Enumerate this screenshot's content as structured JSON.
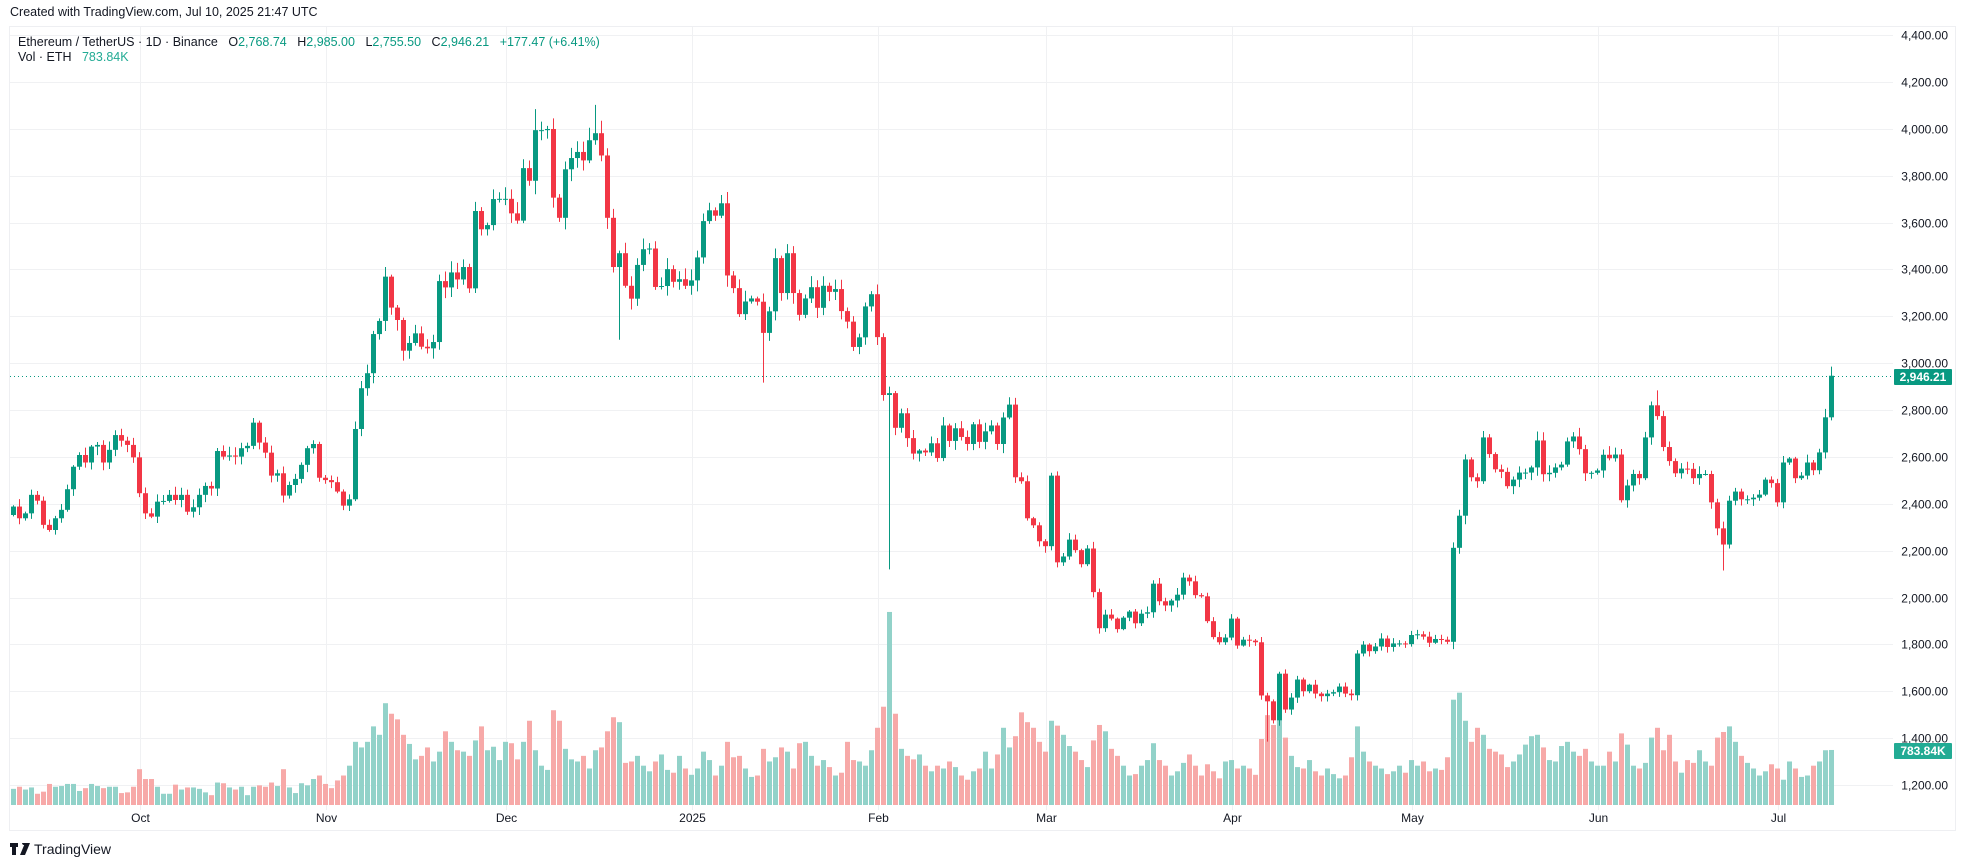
{
  "header": {
    "created": "Created with TradingView.com, Jul 10, 2025 21:47 UTC"
  },
  "legend": {
    "symbol": "Ethereum / TetherUS · 1D · Binance",
    "o_label": "O",
    "o_value": "2,768.74",
    "h_label": "H",
    "h_value": "2,985.00",
    "l_label": "L",
    "l_value": "2,755.50",
    "c_label": "C",
    "c_value": "2,946.21",
    "change": "+177.47 (+6.41%)",
    "vol_label": "Vol · ETH",
    "vol_value": "783.84K"
  },
  "price_tag": "2,946.21",
  "volume_tag": "783.84K",
  "footer": {
    "logo_text": "TradingView"
  },
  "colors": {
    "up": "#089981",
    "down": "#F23645",
    "vol_up": "#92d2c9",
    "vol_down": "#f7a9a8",
    "grid": "#f0f1f3"
  },
  "chart_data": {
    "type": "candlestick",
    "title": "Ethereum / TetherUS · 1D · Binance",
    "start_date": "2024-09-10",
    "ylim": [
      1100,
      4450
    ],
    "y_ticks": [
      {
        "value": 4400,
        "label": "4,400.00"
      },
      {
        "value": 4200,
        "label": "4,200.00"
      },
      {
        "value": 4000,
        "label": "4,000.00"
      },
      {
        "value": 3800,
        "label": "3,800.00"
      },
      {
        "value": 3600,
        "label": "3,600.00"
      },
      {
        "value": 3400,
        "label": "3,400.00"
      },
      {
        "value": 3200,
        "label": "3,200.00"
      },
      {
        "value": 3000,
        "label": "3,000.00"
      },
      {
        "value": 2800,
        "label": "2,800.00"
      },
      {
        "value": 2600,
        "label": "2,600.00"
      },
      {
        "value": 2400,
        "label": "2,400.00"
      },
      {
        "value": 2200,
        "label": "2,200.00"
      },
      {
        "value": 2000,
        "label": "2,000.00"
      },
      {
        "value": 1800,
        "label": "1,800.00"
      },
      {
        "value": 1600,
        "label": "1,600.00"
      },
      {
        "value": 1400,
        "label": "1,400.00"
      },
      {
        "value": 1200,
        "label": "1,200.00"
      }
    ],
    "x_ticks": [
      {
        "label": "Oct",
        "index": 21
      },
      {
        "label": "Nov",
        "index": 52
      },
      {
        "label": "Dec",
        "index": 82
      },
      {
        "label": "2025",
        "index": 113
      },
      {
        "label": "Feb",
        "index": 144
      },
      {
        "label": "Mar",
        "index": 172
      },
      {
        "label": "Apr",
        "index": 203
      },
      {
        "label": "May",
        "index": 233
      },
      {
        "label": "Jun",
        "index": 264
      },
      {
        "label": "Jul",
        "index": 294
      }
    ],
    "first_open": 2352,
    "close": [
      2388,
      2338,
      2359,
      2438,
      2413,
      2310,
      2288,
      2338,
      2374,
      2462,
      2558,
      2608,
      2576,
      2644,
      2651,
      2576,
      2630,
      2693,
      2669,
      2651,
      2598,
      2445,
      2359,
      2345,
      2409,
      2412,
      2438,
      2416,
      2438,
      2366,
      2385,
      2438,
      2476,
      2465,
      2625,
      2601,
      2606,
      2601,
      2637,
      2647,
      2746,
      2661,
      2618,
      2520,
      2530,
      2435,
      2480,
      2506,
      2566,
      2637,
      2655,
      2511,
      2501,
      2492,
      2452,
      2392,
      2419,
      2719,
      2893,
      2957,
      3124,
      3180,
      3369,
      3237,
      3184,
      3053,
      3086,
      3127,
      3070,
      3063,
      3090,
      3350,
      3323,
      3387,
      3357,
      3410,
      3319,
      3649,
      3571,
      3589,
      3700,
      3701,
      3701,
      3639,
      3608,
      3832,
      3778,
      3994,
      3994,
      3999,
      3706,
      3620,
      3827,
      3875,
      3901,
      3865,
      3951,
      3981,
      3886,
      3620,
      3410,
      3469,
      3330,
      3275,
      3419,
      3486,
      3489,
      3325,
      3329,
      3401,
      3347,
      3358,
      3330,
      3353,
      3451,
      3606,
      3652,
      3629,
      3682,
      3374,
      3320,
      3209,
      3263,
      3276,
      3262,
      3129,
      3221,
      3448,
      3299,
      3469,
      3299,
      3206,
      3276,
      3324,
      3236,
      3330,
      3304,
      3316,
      3222,
      3177,
      3069,
      3110,
      3242,
      3294,
      3111,
      2864,
      2872,
      2724,
      2786,
      2680,
      2614,
      2627,
      2619,
      2658,
      2595,
      2734,
      2668,
      2722,
      2685,
      2655,
      2739,
      2664,
      2709,
      2734,
      2655,
      2768,
      2823,
      2513,
      2496,
      2338,
      2308,
      2240,
      2219,
      2520,
      2150,
      2175,
      2247,
      2202,
      2142,
      2209,
      2023,
      1869,
      1927,
      1910,
      1865,
      1914,
      1940,
      1890,
      1931,
      1937,
      2059,
      1984,
      1966,
      1987,
      2012,
      2085,
      2069,
      2010,
      2005,
      1899,
      1831,
      1809,
      1829,
      1910,
      1795,
      1820,
      1816,
      1809,
      1582,
      1557,
      1476,
      1675,
      1522,
      1573,
      1650,
      1600,
      1628,
      1590,
      1579,
      1590,
      1596,
      1620,
      1590,
      1583,
      1761,
      1799,
      1771,
      1791,
      1825,
      1789,
      1804,
      1804,
      1801,
      1840,
      1843,
      1833,
      1807,
      1823,
      1820,
      1811,
      2212,
      2349,
      2589,
      2513,
      2496,
      2683,
      2612,
      2547,
      2536,
      2475,
      2503,
      2533,
      2533,
      2555,
      2670,
      2526,
      2532,
      2555,
      2567,
      2666,
      2687,
      2633,
      2530,
      2532,
      2542,
      2609,
      2594,
      2610,
      2415,
      2478,
      2527,
      2509,
      2683,
      2820,
      2774,
      2642,
      2582,
      2530,
      2550,
      2549,
      2509,
      2527,
      2527,
      2406,
      2295,
      2226,
      2413,
      2452,
      2419,
      2419,
      2426,
      2439,
      2503,
      2488,
      2406,
      2576,
      2593,
      2509,
      2520,
      2576,
      2543,
      2619,
      2768.74,
      2946.21
    ],
    "extremes": [
      {
        "index": 87,
        "high": 4084
      },
      {
        "index": 97,
        "high": 4102
      },
      {
        "index": 101,
        "low": 3100
      },
      {
        "index": 125,
        "low": 2917
      },
      {
        "index": 146,
        "high": 2900,
        "low": 2120
      },
      {
        "index": 209,
        "low": 1385
      },
      {
        "index": 274,
        "high": 2884
      },
      {
        "index": 285,
        "low": 2115
      },
      {
        "index": 303,
        "high": 2985.0,
        "low": 2755.5
      }
    ],
    "volume_unit": "K ETH",
    "volume": [
      230,
      260,
      220,
      250,
      160,
      190,
      300,
      260,
      270,
      300,
      300,
      200,
      240,
      300,
      270,
      240,
      260,
      260,
      170,
      180,
      260,
      510,
      370,
      370,
      260,
      160,
      160,
      290,
      220,
      250,
      250,
      230,
      180,
      140,
      320,
      310,
      250,
      220,
      260,
      140,
      260,
      280,
      260,
      320,
      270,
      510,
      250,
      170,
      310,
      280,
      370,
      420,
      300,
      240,
      350,
      420,
      560,
      900,
      820,
      900,
      1120,
      1000,
      1450,
      1300,
      1220,
      1000,
      870,
      650,
      700,
      820,
      620,
      760,
      1050,
      900,
      780,
      760,
      700,
      920,
      1120,
      780,
      830,
      640,
      900,
      880,
      650,
      900,
      1200,
      780,
      560,
      500,
      1350,
      1200,
      800,
      650,
      620,
      700,
      520,
      780,
      820,
      1050,
      1250,
      1180,
      600,
      620,
      700,
      560,
      480,
      620,
      720,
      500,
      460,
      700,
      520,
      430,
      520,
      760,
      640,
      420,
      560,
      900,
      680,
      700,
      520,
      400,
      420,
      800,
      620,
      680,
      820,
      760,
      520,
      880,
      900,
      700,
      560,
      640,
      540,
      420,
      460,
      900,
      640,
      620,
      560,
      780,
      1100,
      1400,
      2750,
      1300,
      800,
      700,
      650,
      720,
      560,
      480,
      560,
      520,
      620,
      540,
      420,
      360,
      480,
      520,
      760,
      520,
      720,
      1100,
      820,
      980,
      1320,
      1180,
      1100,
      900,
      760,
      1200,
      1130,
      1000,
      840,
      760,
      640,
      540,
      920,
      1140,
      1050,
      800,
      700,
      560,
      420,
      440,
      560,
      640,
      880,
      640,
      560,
      420,
      480,
      600,
      720,
      560,
      420,
      580,
      480,
      380,
      620,
      640,
      520,
      560,
      520,
      430,
      940,
      1280,
      1140,
      1400,
      960,
      700,
      540,
      520,
      640,
      480,
      420,
      520,
      440,
      380,
      420,
      680,
      1120,
      760,
      620,
      560,
      520,
      440,
      480,
      560,
      460,
      640,
      560,
      620,
      480,
      520,
      500,
      680,
      1500,
      1600,
      1200,
      900,
      1100,
      1000,
      800,
      760,
      720,
      540,
      620,
      720,
      860,
      980,
      1000,
      820,
      640,
      620,
      840,
      900,
      760,
      700,
      800,
      620,
      560,
      560,
      760,
      620,
      1020,
      860,
      560,
      520,
      600,
      960,
      1100,
      780,
      1000,
      620,
      460,
      640,
      600,
      780,
      620,
      560,
      960,
      1040,
      1120,
      900,
      700,
      600,
      520,
      420,
      480,
      580,
      520,
      360,
      620,
      520,
      400,
      420,
      560,
      620,
      780,
      783.84
    ],
    "last_price": 2946.21
  }
}
